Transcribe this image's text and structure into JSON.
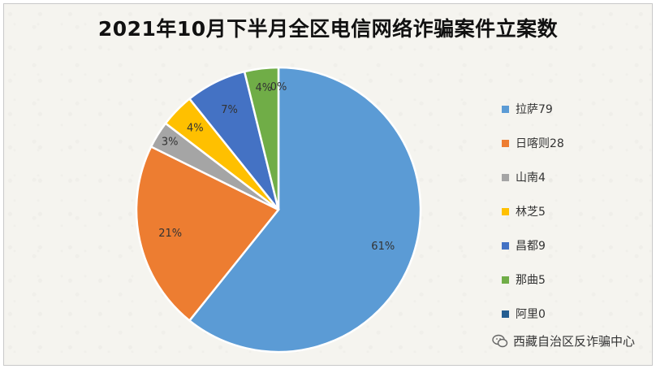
{
  "chart_data": {
    "type": "pie",
    "title": "2021年10月下半月全区电信网络诈骗案件立案数",
    "categories": [
      "拉萨79",
      "日喀则28",
      "山南4",
      "林芝5",
      "昌都9",
      "那曲5",
      "阿里0"
    ],
    "values": [
      79,
      28,
      4,
      5,
      9,
      5,
      0
    ],
    "data_labels": [
      "61%",
      "21%",
      "3%",
      "4%",
      "7%",
      "4%",
      "0%"
    ],
    "colors": [
      "#5b9bd5",
      "#ed7d31",
      "#a5a5a5",
      "#ffc000",
      "#4472c4",
      "#70ad47",
      "#255e91"
    ],
    "legend_position": "right"
  },
  "watermark": {
    "text": "西藏自治区反诈骗中心",
    "icon": "wechat-icon"
  }
}
